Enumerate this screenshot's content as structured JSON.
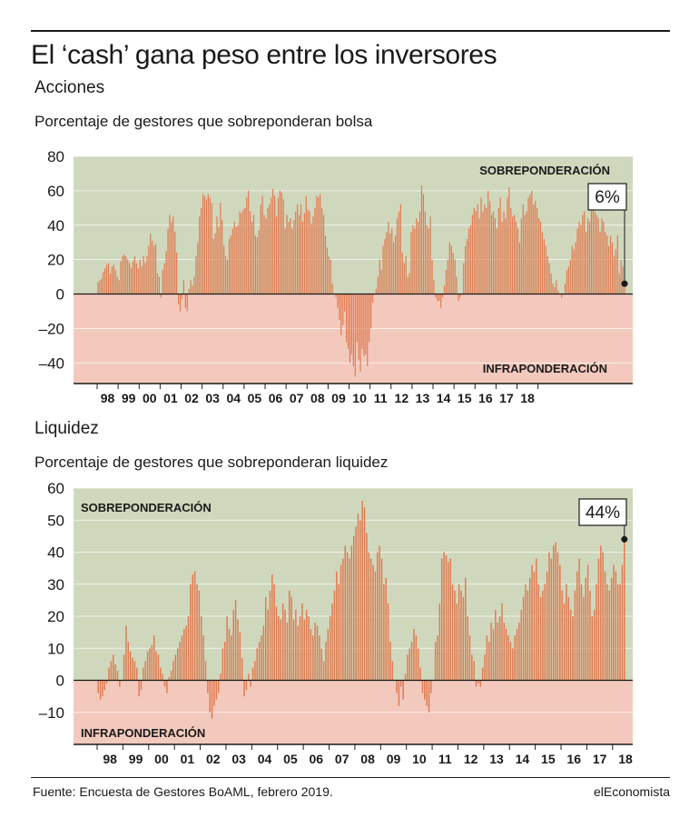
{
  "title": "El ‘cash’ gana peso entre los inversores",
  "source": "Fuente: Encuesta de Gestores BoAML, febrero 2019.",
  "brand": "elEconomista",
  "colors": {
    "over_bg": "#cfd8bd",
    "under_bg": "#f3c9bd",
    "bar": "#e07a50",
    "text": "#1a1a1a"
  },
  "chart_data": [
    {
      "type": "bar",
      "section": "Acciones",
      "subtitle": "Porcentaje de gestores que sobreponderan bolsa",
      "over_label": "SOBREPONDERACIÓN",
      "under_label": "INFRAPONDERACIÓN",
      "callout": "6%",
      "ylim": [
        -52,
        80
      ],
      "yticks": [
        80,
        60,
        40,
        20,
        0,
        -20,
        -40
      ],
      "ytick_labels": [
        "80",
        "60",
        "40",
        "20",
        "0",
        "–20",
        "–40"
      ],
      "xlabels": [
        "98",
        "99",
        "00",
        "01",
        "02",
        "03",
        "04",
        "05",
        "06",
        "07",
        "08",
        "09",
        "10",
        "11",
        "12",
        "13",
        "14",
        "15",
        "16",
        "17",
        "18"
      ],
      "start_year": 1998,
      "values": [
        7,
        8,
        9,
        13,
        15,
        17,
        18,
        12,
        16,
        17,
        14,
        10,
        8,
        19,
        22,
        23,
        22,
        20,
        18,
        15,
        19,
        22,
        18,
        15,
        20,
        16,
        22,
        18,
        22,
        28,
        35,
        31,
        28,
        29,
        12,
        10,
        -2,
        14,
        18,
        25,
        38,
        46,
        42,
        45,
        36,
        24,
        -6,
        -10,
        -3,
        8,
        -8,
        -10,
        3,
        8,
        5,
        10,
        22,
        30,
        45,
        50,
        58,
        57,
        55,
        58,
        56,
        53,
        32,
        35,
        45,
        39,
        53,
        43,
        28,
        22,
        20,
        32,
        34,
        38,
        42,
        39,
        40,
        48,
        47,
        49,
        50,
        56,
        60,
        48,
        42,
        46,
        34,
        33,
        37,
        52,
        57,
        46,
        44,
        50,
        52,
        56,
        61,
        57,
        45,
        56,
        60,
        59,
        55,
        38,
        46,
        42,
        44,
        38,
        43,
        48,
        52,
        46,
        52,
        42,
        47,
        57,
        49,
        48,
        41,
        45,
        50,
        57,
        56,
        58,
        50,
        46,
        34,
        27,
        22,
        20,
        6,
        0,
        -2,
        -8,
        -15,
        -24,
        -18,
        -10,
        -28,
        -32,
        -40,
        -35,
        -42,
        -48,
        -28,
        -38,
        -45,
        -32,
        -36,
        -35,
        -42,
        -28,
        -20,
        -5,
        0,
        3,
        10,
        20,
        14,
        28,
        32,
        36,
        42,
        35,
        38,
        30,
        34,
        44,
        48,
        52,
        24,
        18,
        22,
        10,
        12,
        36,
        40,
        38,
        44,
        42,
        48,
        63,
        58,
        48,
        40,
        38,
        45,
        20,
        8,
        -2,
        -4,
        -4,
        -8,
        -2,
        5,
        14,
        20,
        30,
        28,
        24,
        20,
        10,
        -4,
        -2,
        0,
        18,
        28,
        32,
        38,
        40,
        46,
        50,
        48,
        52,
        44,
        56,
        48,
        52,
        50,
        60,
        54,
        46,
        48,
        44,
        38,
        50,
        56,
        42,
        48,
        44,
        56,
        62,
        50,
        45,
        46,
        42,
        38,
        30,
        44,
        52,
        46,
        48,
        56,
        58,
        60,
        52,
        54,
        50,
        44,
        42,
        36,
        32,
        28,
        22,
        18,
        12,
        6,
        4,
        8,
        2,
        0,
        -2,
        0,
        6,
        14,
        16,
        20,
        28,
        26,
        30,
        38,
        42,
        40,
        46,
        48,
        36,
        44,
        42,
        50,
        52,
        48,
        46,
        44,
        36,
        44,
        42,
        36,
        34,
        28,
        34,
        30,
        22,
        26,
        34,
        12,
        20,
        16,
        6
      ]
    },
    {
      "type": "bar",
      "section": "Liquidez",
      "subtitle": "Porcentaje de gestores que sobreponderan liquidez",
      "over_label": "SOBREPONDERACIÓN",
      "under_label": "INFRAPONDERACIÓN",
      "callout": "44%",
      "ylim": [
        -20,
        60
      ],
      "yticks": [
        60,
        50,
        40,
        30,
        20,
        10,
        0,
        -10
      ],
      "ytick_labels": [
        "60",
        "50",
        "40",
        "30",
        "20",
        "10",
        "0",
        "–10"
      ],
      "xlabels": [
        "98",
        "99",
        "00",
        "01",
        "02",
        "03",
        "04",
        "05",
        "06",
        "07",
        "08",
        "09",
        "10",
        "11",
        "12",
        "13",
        "14",
        "15",
        "16",
        "17",
        "18"
      ],
      "start_year": 1998,
      "values": [
        -4,
        -6,
        -5,
        -3,
        -1,
        4,
        6,
        8,
        5,
        3,
        -2,
        0,
        8,
        17,
        12,
        9,
        7,
        6,
        4,
        -5,
        -3,
        4,
        6,
        9,
        10,
        11,
        14,
        9,
        8,
        4,
        2,
        -2,
        -4,
        1,
        3,
        6,
        8,
        10,
        12,
        14,
        16,
        17,
        20,
        30,
        33,
        34,
        30,
        28,
        20,
        14,
        6,
        -4,
        -10,
        -12,
        -8,
        -6,
        -4,
        2,
        10,
        12,
        20,
        16,
        14,
        22,
        25,
        19,
        15,
        7,
        -5,
        -3,
        2,
        -2,
        4,
        6,
        10,
        12,
        14,
        17,
        26,
        22,
        28,
        33,
        30,
        23,
        20,
        19,
        24,
        22,
        18,
        28,
        26,
        19,
        22,
        17,
        20,
        24,
        19,
        22,
        20,
        16,
        14,
        18,
        17,
        14,
        10,
        6,
        12,
        16,
        20,
        24,
        28,
        34,
        30,
        36,
        38,
        42,
        40,
        38,
        42,
        45,
        48,
        52,
        50,
        56,
        54,
        46,
        40,
        38,
        36,
        34,
        40,
        42,
        38,
        30,
        32,
        24,
        12,
        6,
        0,
        -4,
        -8,
        -2,
        -6,
        2,
        8,
        10,
        12,
        16,
        14,
        10,
        4,
        -4,
        -6,
        -8,
        -10,
        -4,
        0,
        12,
        14,
        24,
        38,
        40,
        39,
        37,
        38,
        30,
        28,
        24,
        30,
        28,
        26,
        32,
        20,
        14,
        8,
        6,
        -2,
        -1,
        -2,
        4,
        8,
        14,
        12,
        18,
        16,
        22,
        18,
        20,
        24,
        18,
        16,
        14,
        12,
        10,
        14,
        16,
        18,
        22,
        26,
        30,
        28,
        32,
        36,
        34,
        38,
        30,
        26,
        28,
        30,
        34,
        40,
        38,
        42,
        43,
        40,
        36,
        28,
        24,
        30,
        26,
        22,
        20,
        28,
        34,
        38,
        30,
        26,
        32,
        36,
        28,
        20,
        22,
        30,
        38,
        42,
        40,
        34,
        30,
        28,
        32,
        36,
        34,
        30,
        30,
        36,
        44
      ]
    }
  ]
}
